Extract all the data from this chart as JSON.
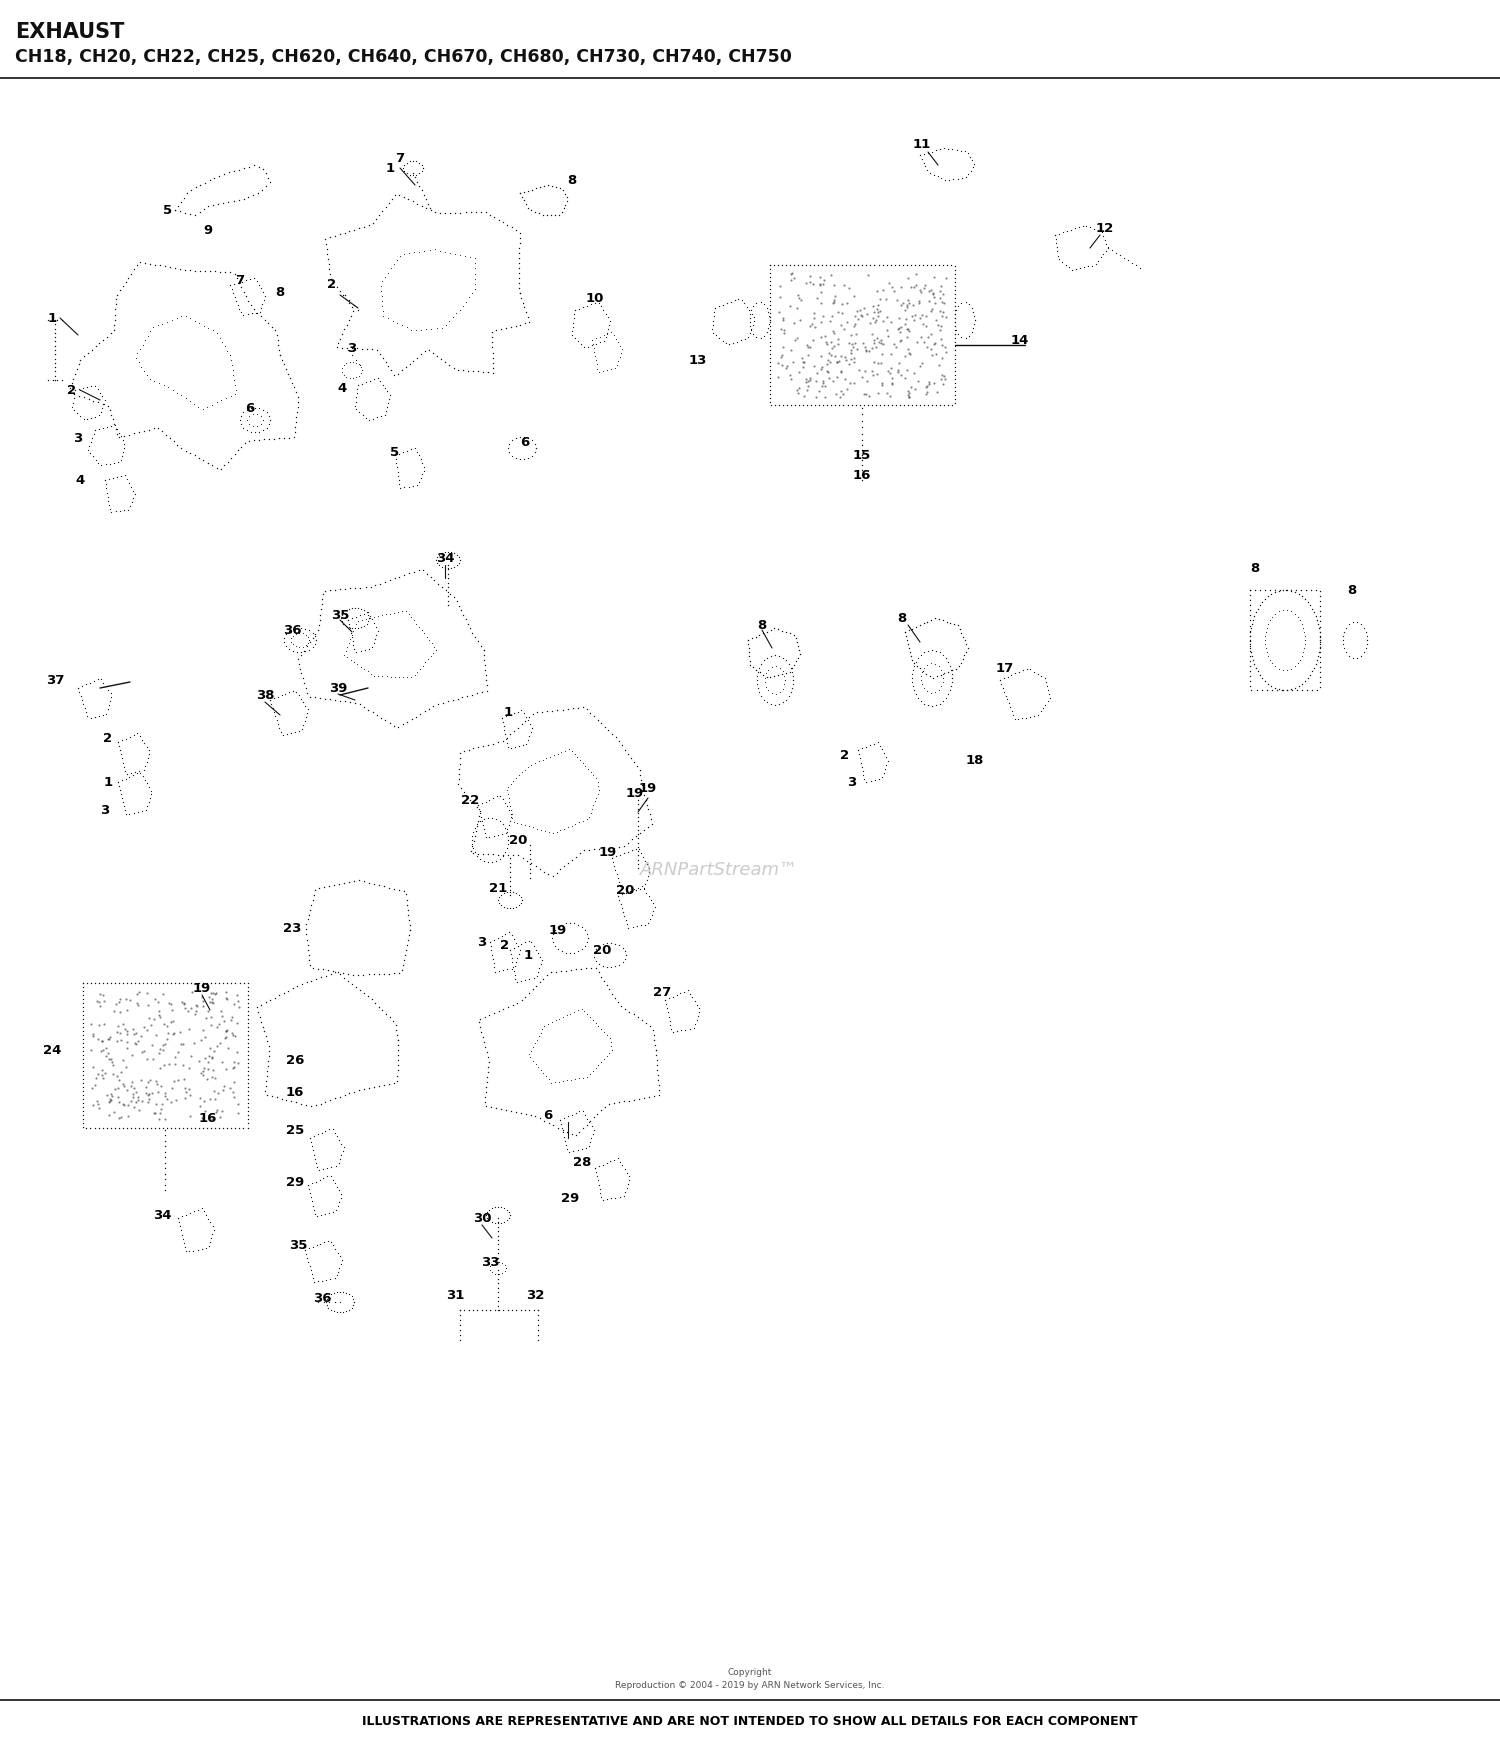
{
  "title_line1": "EXHAUST",
  "title_line2": "CH18, CH20, CH22, CH25, CH620, CH640, CH670, CH680, CH730, CH740, CH750",
  "footer_copyright": "Copyright\nReproduction © 2004 - 2019 by ARN Network Services, Inc.",
  "footer_disclaimer": "ILLUSTRATIONS ARE REPRESENTATIVE AND ARE NOT INTENDED TO SHOW ALL DETAILS FOR EACH COMPONENT",
  "watermark": "ARNPartStream™",
  "bg_color": "#ffffff",
  "ink_color": "#111111",
  "fig_width": 15.0,
  "fig_height": 17.42
}
